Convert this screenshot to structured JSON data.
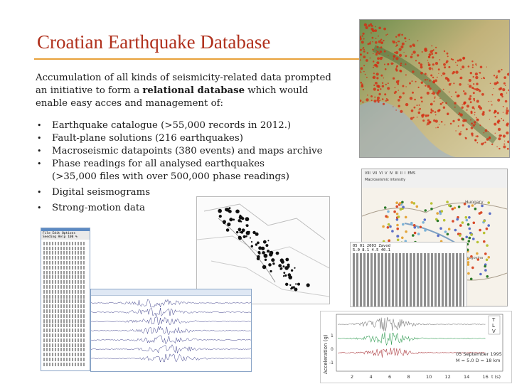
{
  "slide": {
    "title": "Croatian Earthquake Database",
    "intro_1": "Accumulation of all kinds of seismicity-related data prompted an initiative to form a ",
    "intro_bold": "relational database",
    "intro_2": " which would enable easy acces and management of:",
    "bullets": [
      {
        "text": "Earthquake catalogue (>55,000 records in 2012.)"
      },
      {
        "text": "Fault-plane solutions (216 earthquakes)"
      },
      {
        "text": "Macroseismic datapoints (380 events) and maps archive"
      },
      {
        "text": "Phase readings for all analysed earthquakes",
        "sub": "(>35,000 files with over 500,000 phase readings)"
      },
      {
        "text": "Digital seismograms"
      },
      {
        "text": "Strong-motion data"
      }
    ]
  },
  "phase_window": {
    "menu_row1": "File Edit Options",
    "menu_row2": "Seeding Help 100 %"
  },
  "macroseismic_map": {
    "legend_label": "Macroseismic intensity",
    "intensity_classes": [
      "VIII",
      "VII",
      "VI",
      "V",
      "IV",
      "III",
      "II",
      "I",
      "EMS"
    ],
    "region_label": "Hungary",
    "region_label_2": "Srbija i Hercegovina"
  },
  "phase_table": {
    "header": "05 01 2003   Zavod",
    "header_2": "5.0  8.1 4.5 40.1"
  },
  "accelerogram": {
    "ylabel": "Acceleration (g)",
    "components": [
      "T",
      "L",
      "V"
    ],
    "date_text": "05 September 1995",
    "magnitude_text": "M = 5.0   D = 18 km",
    "x_ticks": [
      "2",
      "4",
      "6",
      "8",
      "10",
      "12",
      "14",
      "16"
    ],
    "x_unit": "t (s)",
    "y_ticks": [
      "1",
      "0",
      "-1"
    ]
  },
  "colors": {
    "title": "#b0301c",
    "rule": "#e8a13a",
    "quake_dots": "#d42a10",
    "terrain": "#c9bd8a"
  }
}
